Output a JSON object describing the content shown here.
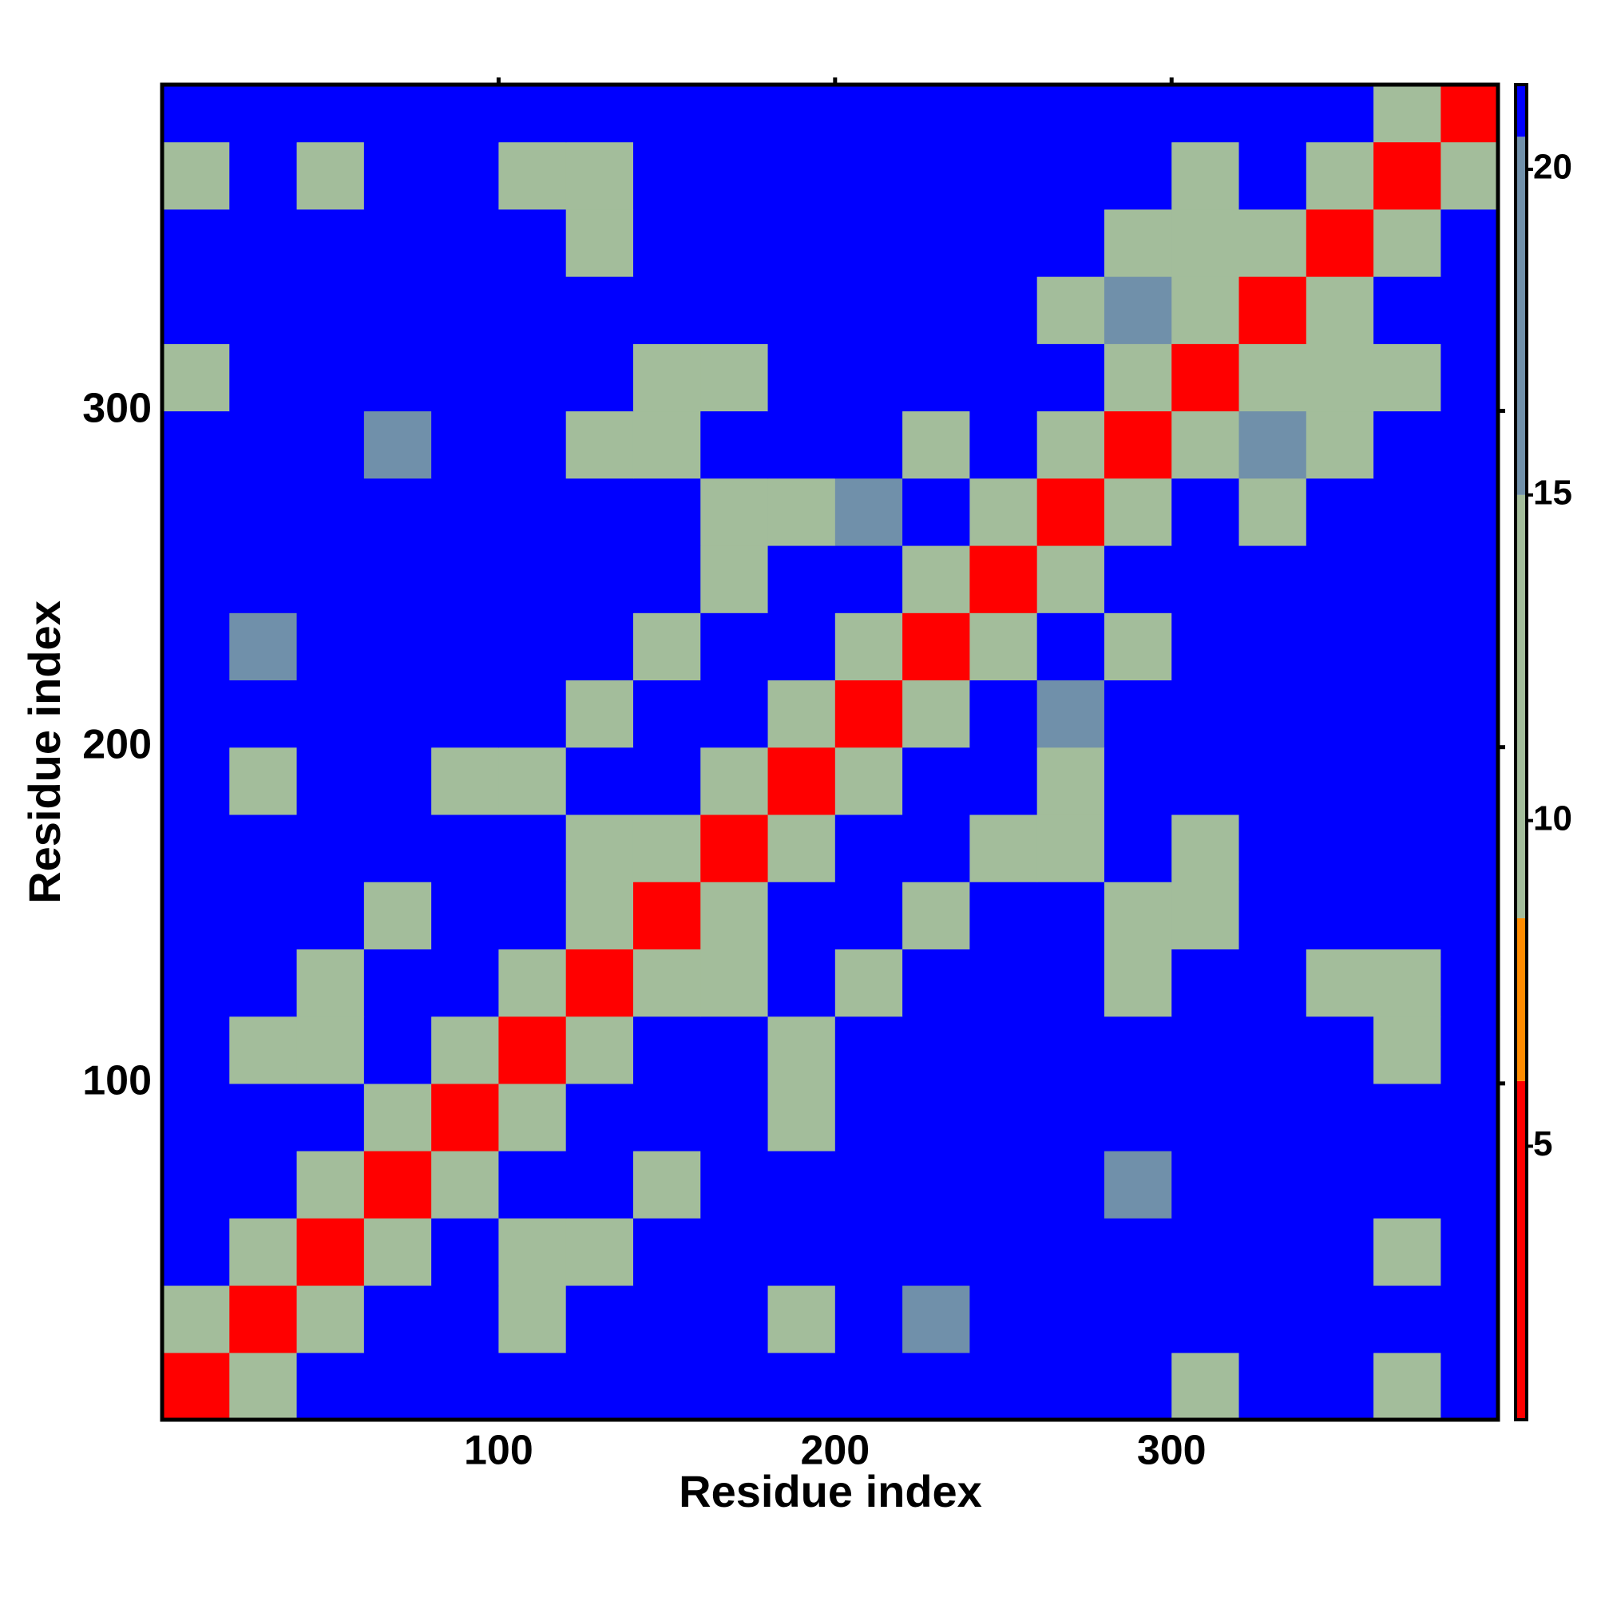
{
  "chart_data": {
    "type": "heatmap",
    "x_label": "Residue index",
    "y_label": "Residue index",
    "x": [
      10,
      30,
      50,
      70,
      90,
      110,
      130,
      150,
      170,
      190,
      210,
      230,
      250,
      270,
      290,
      310,
      330,
      350,
      370,
      390
    ],
    "y": [
      10,
      30,
      50,
      70,
      90,
      110,
      130,
      150,
      170,
      190,
      210,
      230,
      250,
      270,
      290,
      310,
      330,
      350,
      370,
      390
    ],
    "values": [
      [
        5,
        14,
        21,
        21,
        21,
        21,
        21,
        21,
        21,
        21,
        21,
        21,
        21,
        21,
        21,
        13,
        21,
        21,
        13,
        21
      ],
      [
        14,
        5,
        14,
        21,
        21,
        12,
        21,
        21,
        21,
        12,
        21,
        18,
        21,
        21,
        21,
        21,
        21,
        21,
        21,
        21
      ],
      [
        21,
        14,
        5,
        14,
        21,
        14,
        12,
        21,
        21,
        21,
        21,
        21,
        21,
        21,
        21,
        21,
        21,
        21,
        14,
        21
      ],
      [
        21,
        21,
        14,
        5,
        14,
        21,
        21,
        11,
        21,
        21,
        21,
        21,
        21,
        21,
        15,
        21,
        21,
        21,
        21,
        21
      ],
      [
        21,
        21,
        21,
        14,
        5,
        14,
        21,
        21,
        21,
        13,
        21,
        21,
        21,
        21,
        21,
        21,
        21,
        21,
        21,
        21
      ],
      [
        21,
        12,
        14,
        21,
        14,
        5,
        14,
        21,
        21,
        13,
        21,
        21,
        21,
        21,
        21,
        21,
        21,
        21,
        13,
        21
      ],
      [
        21,
        21,
        12,
        21,
        21,
        14,
        5,
        14,
        13,
        21,
        14,
        21,
        21,
        21,
        12,
        21,
        21,
        13,
        12,
        21
      ],
      [
        21,
        21,
        21,
        11,
        21,
        21,
        14,
        5,
        14,
        21,
        21,
        13,
        21,
        21,
        13,
        14,
        21,
        21,
        21,
        21
      ],
      [
        21,
        21,
        21,
        21,
        21,
        21,
        13,
        14,
        5,
        14,
        21,
        21,
        12,
        13,
        21,
        14,
        21,
        21,
        21,
        21
      ],
      [
        21,
        12,
        21,
        21,
        13,
        13,
        21,
        21,
        14,
        5,
        14,
        21,
        21,
        13,
        21,
        21,
        21,
        21,
        21,
        21
      ],
      [
        21,
        21,
        21,
        21,
        21,
        21,
        14,
        21,
        21,
        14,
        5,
        14,
        21,
        15,
        21,
        21,
        21,
        21,
        21,
        21
      ],
      [
        21,
        18,
        21,
        21,
        21,
        21,
        21,
        13,
        21,
        21,
        14,
        5,
        14,
        21,
        14,
        21,
        21,
        21,
        21,
        21
      ],
      [
        21,
        21,
        21,
        21,
        21,
        21,
        21,
        21,
        12,
        21,
        21,
        14,
        5,
        14,
        21,
        21,
        21,
        21,
        21,
        21
      ],
      [
        21,
        21,
        21,
        21,
        21,
        21,
        21,
        21,
        13,
        13,
        15,
        21,
        14,
        5,
        14,
        21,
        12,
        21,
        21,
        21
      ],
      [
        21,
        21,
        21,
        15,
        21,
        21,
        12,
        13,
        21,
        21,
        21,
        14,
        21,
        14,
        5,
        14,
        15,
        12,
        21,
        21
      ],
      [
        13,
        21,
        21,
        21,
        21,
        21,
        21,
        14,
        14,
        21,
        21,
        21,
        21,
        21,
        14,
        5,
        14,
        13,
        13,
        21
      ],
      [
        21,
        21,
        21,
        21,
        21,
        21,
        21,
        21,
        21,
        21,
        21,
        21,
        21,
        12,
        15,
        14,
        5,
        14,
        21,
        21
      ],
      [
        21,
        21,
        21,
        21,
        21,
        21,
        13,
        21,
        21,
        21,
        21,
        21,
        21,
        21,
        12,
        13,
        14,
        5,
        14,
        21
      ],
      [
        13,
        21,
        14,
        21,
        21,
        13,
        12,
        21,
        21,
        21,
        21,
        21,
        21,
        21,
        21,
        13,
        21,
        14,
        5,
        14
      ],
      [
        21,
        21,
        21,
        21,
        21,
        21,
        21,
        21,
        21,
        21,
        21,
        21,
        21,
        21,
        21,
        21,
        21,
        21,
        14,
        5
      ]
    ],
    "xlim": [
      0,
      397
    ],
    "ylim": [
      0,
      397
    ],
    "xticks": [
      100,
      200,
      300
    ],
    "yticks": [
      100,
      200,
      300
    ],
    "zlim": [
      0.8,
      21.3
    ],
    "zticks": [
      5,
      10,
      15,
      20
    ],
    "colorscale": [
      {
        "value": 1,
        "color": "#ff0000"
      },
      {
        "value": 6,
        "color": "#ff8c00"
      },
      {
        "value": 8.5,
        "color": "#a3bd9b"
      },
      {
        "value": 15,
        "color": "#7090aa"
      },
      {
        "value": 20.5,
        "color": "#0000ff"
      }
    ]
  }
}
